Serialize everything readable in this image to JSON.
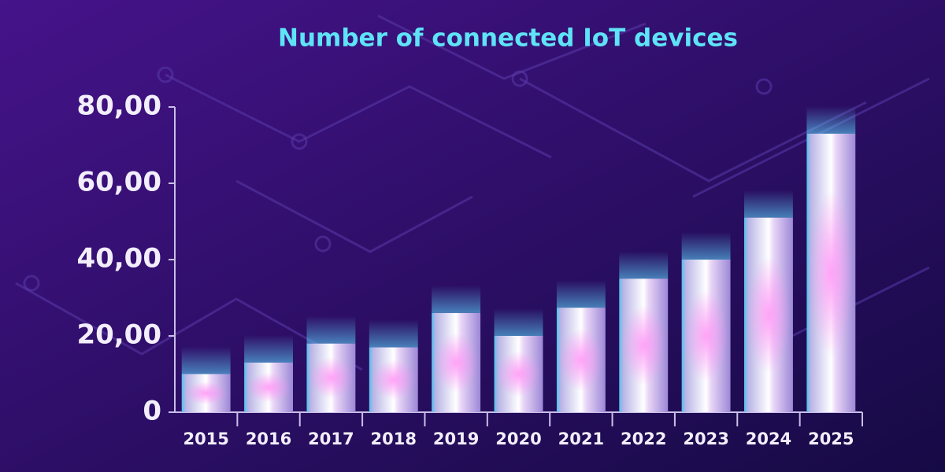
{
  "chart_data": {
    "type": "bar",
    "title": "Number of connected IoT devices",
    "categories": [
      "2015",
      "2016",
      "2017",
      "2018",
      "2019",
      "2020",
      "2021",
      "2022",
      "2023",
      "2024",
      "2025"
    ],
    "values": [
      10,
      13,
      18,
      17,
      26,
      20,
      27.4,
      35,
      40,
      51,
      73
    ],
    "color": "#e6def7",
    "ylim": [
      0,
      80
    ],
    "yticks": [
      0,
      {
        "value": 20,
        "label": "20,00"
      },
      {
        "value": 40,
        "label": "40,00"
      },
      {
        "value": 60,
        "label": "60,00"
      },
      {
        "value": 80,
        "label": "80,00"
      }
    ]
  }
}
